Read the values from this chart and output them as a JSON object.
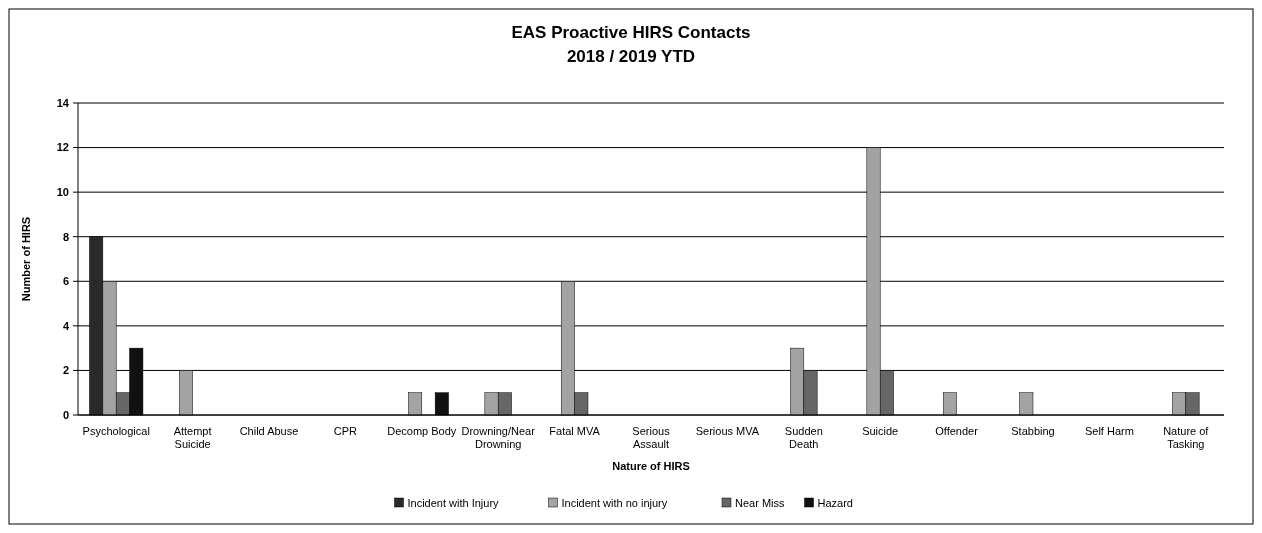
{
  "chart_data": {
    "type": "bar",
    "title": "EAS Proactive HIRS Contacts",
    "subtitle": "2018 / 2019 YTD",
    "xlabel": "Nature of HIRS",
    "ylabel": "Number of HIRS",
    "categories": [
      "Psychological",
      "Attempt Suicide",
      "Child Abuse",
      "CPR",
      "Decomp Body",
      "Drowning/Near Drowning",
      "Fatal MVA",
      "Serious Assault",
      "Serious MVA",
      "Sudden Death",
      "Suicide",
      "Offender",
      "Stabbing",
      "Self Harm",
      "Nature of Tasking"
    ],
    "series": [
      {
        "name": "Incident with Injury",
        "color": "#2a2a2a",
        "values": [
          8,
          0,
          0,
          0,
          0,
          0,
          0,
          0,
          0,
          0,
          0,
          0,
          0,
          0,
          0
        ]
      },
      {
        "name": "Incident with no injury",
        "color": "#a3a3a3",
        "values": [
          6,
          2,
          0,
          0,
          1,
          1,
          6,
          0,
          0,
          3,
          12,
          1,
          1,
          0,
          1
        ]
      },
      {
        "name": "Near Miss",
        "color": "#666666",
        "values": [
          1,
          0,
          0,
          0,
          0,
          1,
          1,
          0,
          0,
          2,
          2,
          0,
          0,
          0,
          1
        ]
      },
      {
        "name": "Hazard",
        "color": "#111111",
        "values": [
          3,
          0,
          0,
          0,
          1,
          0,
          0,
          0,
          0,
          0,
          0,
          0,
          0,
          0,
          0
        ]
      }
    ],
    "ylim": [
      0,
      14
    ],
    "yticks": [
      0,
      2,
      4,
      6,
      8,
      10,
      12,
      14
    ],
    "grid": "y",
    "legend": "bottom"
  }
}
